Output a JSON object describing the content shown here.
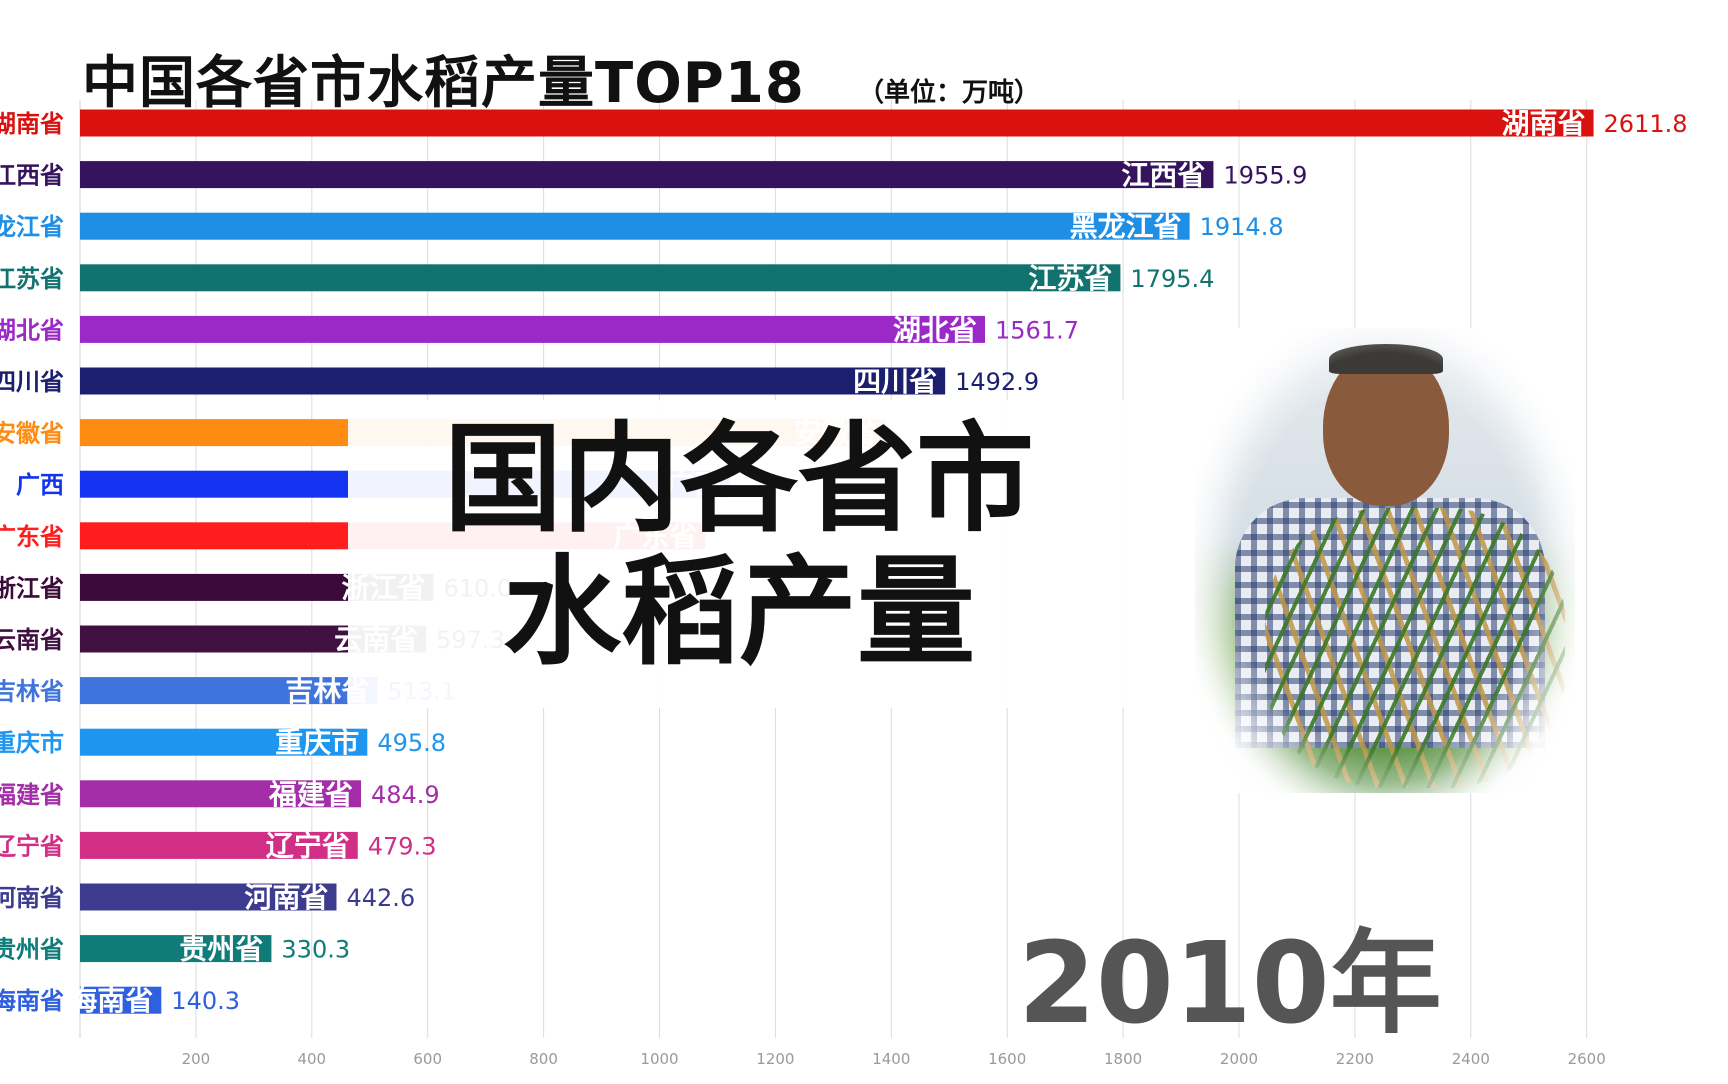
{
  "header": {
    "title": "中国各省市水稻产量TOP18",
    "unit": "（单位：万吨）"
  },
  "overlay": {
    "line1": "国内各省市",
    "line2": "水稻产量"
  },
  "year": "2010年",
  "chart_data": {
    "type": "bar",
    "orientation": "horizontal",
    "title": "中国各省市水稻产量TOP18",
    "unit": "（单位：万吨）",
    "xlim": [
      0,
      2700
    ],
    "ticks": [
      200,
      400,
      600,
      800,
      1000,
      1200,
      1400,
      1600,
      1800,
      2000,
      2200,
      2400,
      2600
    ],
    "grid": true,
    "categories": [
      "湖南省",
      "江西省",
      "黑龙江省",
      "江苏省",
      "湖北省",
      "四川省",
      "安徽省",
      "广西",
      "广东省",
      "浙江省",
      "云南省",
      "吉林省",
      "重庆市",
      "福建省",
      "辽宁省",
      "河南省",
      "贵州省",
      "海南省"
    ],
    "values": [
      2611.8,
      1955.9,
      1914.8,
      1795.4,
      1561.7,
      1492.9,
      1389.8,
      1121.8,
      1078.9,
      610.0,
      597.3,
      513.1,
      495.8,
      484.9,
      479.3,
      442.6,
      330.3,
      140.3
    ],
    "value_labels": [
      "2611.8",
      "1955.9",
      "1914.8",
      "1795.4",
      "1561.7",
      "1492.9",
      null,
      null,
      null,
      "610.0",
      "597.3",
      "513.1",
      "495.8",
      "484.9",
      "479.3",
      "442.6",
      "330.3",
      "140.3"
    ],
    "colors": [
      "#d9120f",
      "#35135f",
      "#1f8fe6",
      "#127270",
      "#9a29c8",
      "#1b1f6e",
      "#ff8c12",
      "#1433f0",
      "#ff1d1d",
      "#3b0a3a",
      "#3f1040",
      "#3f74dc",
      "#1e96f0",
      "#a32ea8",
      "#d12f86",
      "#3d3b8e",
      "#0f7c79",
      "#2f60e0"
    ]
  },
  "icons": {
    "photo": "farmer-holding-rice-photo"
  }
}
